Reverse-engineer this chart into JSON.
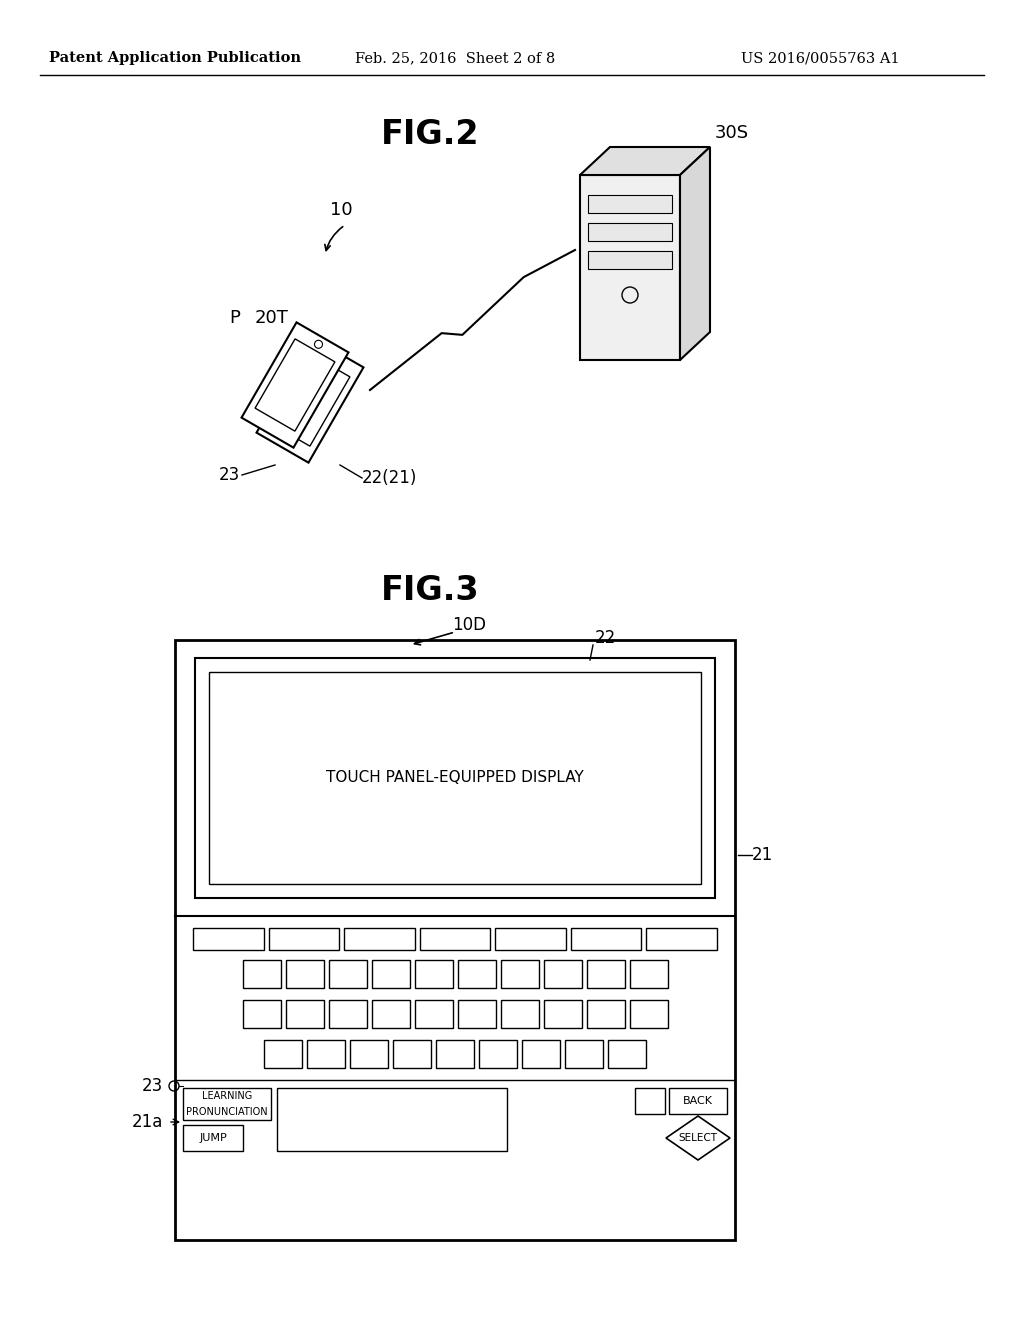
{
  "bg_color": "#ffffff",
  "header_left": "Patent Application Publication",
  "header_mid": "Feb. 25, 2016  Sheet 2 of 8",
  "header_right": "US 2016/0055763 A1",
  "fig2_title": "FIG.2",
  "fig3_title": "FIG.3",
  "label_10": "10",
  "label_30S": "30S",
  "label_20T": "20T",
  "label_P": "P",
  "label_23_fig2": "23",
  "label_22_21": "22(21)",
  "label_10D": "10D",
  "label_22_fig3": "22",
  "label_21": "21",
  "label_23_fig3": "23",
  "label_21a": "21a",
  "touch_panel_text": "TOUCH PANEL-EQUIPPED DISPLAY",
  "back_text": "BACK",
  "select_text": "SELECT",
  "pronun_text1": "PRONUNCIATION",
  "pronun_text2": "LEARNING",
  "jump_text": "JUMP"
}
